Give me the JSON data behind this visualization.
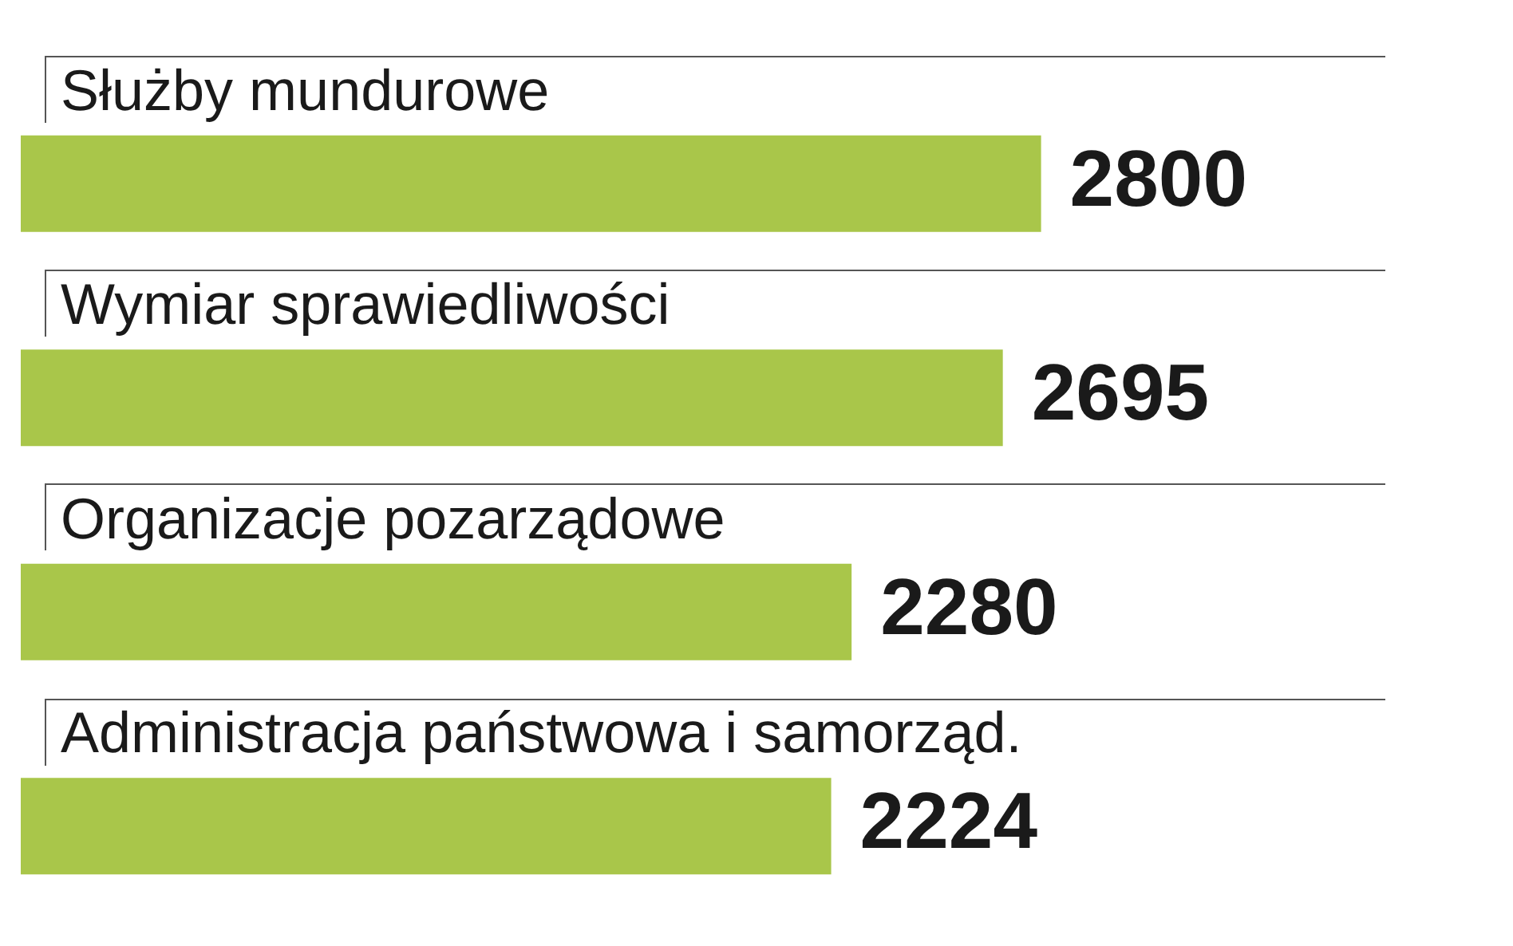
{
  "chart_data": {
    "type": "bar",
    "orientation": "horizontal",
    "data_labels": true,
    "categories": [
      "Służby mundurowe",
      "Wymiar sprawiedliwości",
      "Organizacje pozarządowe",
      "Administracja państwowa i samorząd."
    ],
    "values": [
      2800,
      2695,
      2280,
      2224
    ],
    "color": "#a9c64a"
  }
}
